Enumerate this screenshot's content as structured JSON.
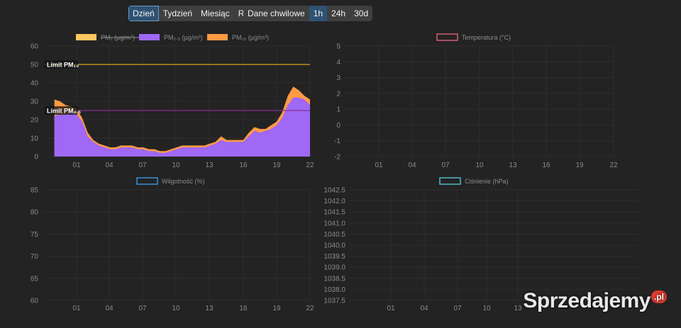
{
  "toolbar": {
    "range_buttons": [
      {
        "label": "Dzień",
        "active": true
      },
      {
        "label": "Tydzień",
        "active": false
      },
      {
        "label": "Miesiąc",
        "active": false
      },
      {
        "label": "Rok",
        "active": false
      }
    ],
    "source_buttons": [
      {
        "label": "Dane chwilowe",
        "active": false
      },
      {
        "label": "1h",
        "active": true
      },
      {
        "label": "24h",
        "active": false
      },
      {
        "label": "30d",
        "active": false
      }
    ]
  },
  "colors": {
    "pm1": "#ffc75f",
    "pm25": "#9f68f5",
    "pm10": "#ff9a45",
    "limit_pm10": "#d9a521",
    "limit_pm25": "#8a2e93",
    "temperature": "#d4607a",
    "humidity": "#3b8fd6",
    "pressure": "#4fbac4"
  },
  "chart_data": [
    {
      "type": "area",
      "legend": [
        "PM₁ (µg/m³)",
        "PM₂.₅ (µg/m³)",
        "PM₁₀ (µg/m³)"
      ],
      "legend_placement": "top",
      "x_ticks": [
        "01",
        "04",
        "07",
        "10",
        "13",
        "16",
        "19",
        "22"
      ],
      "ylim": [
        0,
        60
      ],
      "y_ticks": [
        0,
        10,
        20,
        30,
        40,
        50,
        60
      ],
      "grid": true,
      "annotations": [
        {
          "label": "Limit PM₁₀",
          "y": 50
        },
        {
          "label": "Limit PM₂.₅",
          "y": 25
        }
      ],
      "x": [
        23,
        23.5,
        0,
        0.5,
        1,
        1.5,
        2,
        2.5,
        3,
        3.5,
        4,
        4.5,
        5,
        5.5,
        6,
        6.5,
        7,
        7.5,
        8,
        8.5,
        9,
        9.5,
        10,
        10.5,
        11,
        11.5,
        12,
        12.5,
        13,
        13.5,
        14,
        14.5,
        15,
        15.5,
        16,
        16.5,
        17,
        17.5,
        18,
        18.5,
        19,
        19.5,
        20,
        20.5,
        21,
        21.5,
        22
      ],
      "series": [
        {
          "name": "PM₂.₅ (µg/m³)",
          "values": [
            22,
            23,
            23,
            24,
            23,
            19,
            11,
            8,
            6,
            5,
            4,
            4,
            5,
            5,
            5,
            4,
            4,
            3,
            3,
            2,
            2,
            3,
            4,
            5,
            5,
            5,
            5,
            5,
            6,
            7,
            9,
            8,
            8,
            8,
            8,
            11,
            14,
            13,
            14,
            15,
            17,
            21,
            28,
            32,
            32,
            31,
            28
          ]
        },
        {
          "name": "PM₁₀ (µg/m³)",
          "values": [
            31,
            30,
            28,
            27,
            26,
            21,
            13,
            9,
            7,
            6,
            5,
            5,
            6,
            6,
            6,
            5,
            5,
            4,
            4,
            3,
            3,
            4,
            5,
            6,
            6,
            6,
            6,
            6,
            7,
            8,
            11,
            9,
            9,
            9,
            9,
            13,
            16,
            15,
            15,
            17,
            19,
            24,
            33,
            38,
            36,
            33,
            31
          ]
        }
      ]
    },
    {
      "type": "line",
      "legend": [
        "Temperatura (°C)"
      ],
      "legend_placement": "top",
      "x_ticks": [
        "01",
        "04",
        "07",
        "10",
        "13",
        "16",
        "19",
        "22"
      ],
      "ylim": [
        -2,
        5
      ],
      "y_ticks": [
        -2,
        -1,
        0,
        1,
        2,
        3,
        4,
        5
      ],
      "grid": true,
      "series": [
        {
          "name": "Temperatura (°C)",
          "values": []
        }
      ]
    },
    {
      "type": "line",
      "legend": [
        "Wilgotność (%)"
      ],
      "legend_placement": "top",
      "x_ticks": [
        "01",
        "04",
        "07",
        "10",
        "13",
        "16",
        "19",
        "22"
      ],
      "ylim": [
        60,
        85
      ],
      "y_ticks": [
        60,
        65,
        70,
        75,
        80,
        85
      ],
      "grid": true,
      "series": [
        {
          "name": "Wilgotność (%)",
          "values": []
        }
      ]
    },
    {
      "type": "line",
      "legend": [
        "Ciśnienie (hPa)"
      ],
      "legend_placement": "top",
      "x_ticks": [
        "01",
        "04",
        "07",
        "10",
        "13"
      ],
      "ylim": [
        1037.5,
        1042.5
      ],
      "y_ticks": [
        "1037.5",
        "1038.0",
        "1038.5",
        "1039.0",
        "1039.5",
        "1040.0",
        "1040.5",
        "1041.0",
        "1041.5",
        "1042.0",
        "1042.5"
      ],
      "grid": true,
      "series": [
        {
          "name": "Ciśnienie (hPa)",
          "values": []
        }
      ]
    }
  ],
  "watermark": {
    "brand": "Sprzedajemy",
    "tld": ".pl"
  }
}
